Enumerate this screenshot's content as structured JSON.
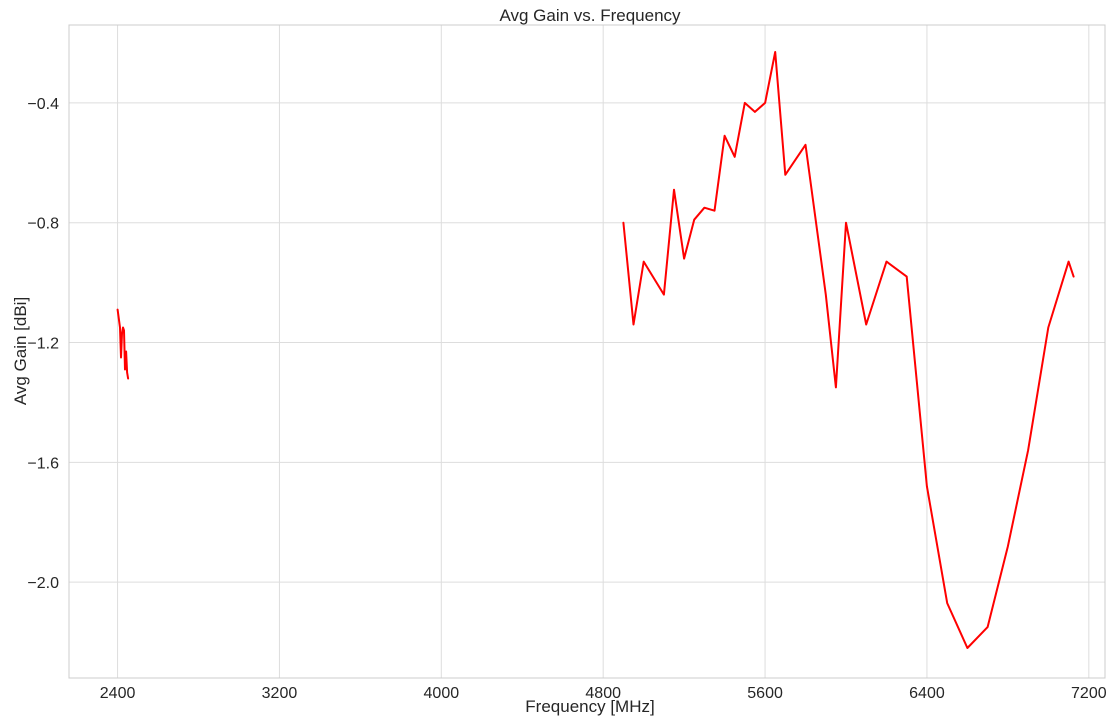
{
  "chart_data": {
    "type": "line",
    "title": "Avg Gain vs. Frequency",
    "xlabel": "Frequency [MHz]",
    "ylabel": "Avg Gain [dBi]",
    "xlim": [
      2160,
      7280
    ],
    "ylim": [
      -2.32,
      -0.14
    ],
    "xticks": [
      2400,
      3200,
      4000,
      4800,
      5600,
      6400,
      7200
    ],
    "xtick_labels": [
      "2400",
      "3200",
      "4000",
      "4800",
      "5600",
      "6400",
      "7200"
    ],
    "yticks": [
      -0.4,
      -0.8,
      -1.2,
      -1.6,
      -2.0
    ],
    "ytick_labels": [
      "−0.4",
      "−0.8",
      "−1.2",
      "−1.6",
      "−2.0"
    ],
    "grid": true,
    "line_color": "#ff0000",
    "series": [
      {
        "points": [
          [
            2400,
            -1.09
          ],
          [
            2412,
            -1.15
          ],
          [
            2417,
            -1.25
          ],
          [
            2422,
            -1.17
          ],
          [
            2427,
            -1.15
          ],
          [
            2432,
            -1.16
          ],
          [
            2437,
            -1.29
          ],
          [
            2442,
            -1.23
          ],
          [
            2447,
            -1.3
          ],
          [
            2452,
            -1.32
          ]
        ]
      },
      {
        "points": [
          [
            4900,
            -0.8
          ],
          [
            4950,
            -1.14
          ],
          [
            5000,
            -0.93
          ],
          [
            5100,
            -1.04
          ],
          [
            5150,
            -0.69
          ],
          [
            5200,
            -0.92
          ],
          [
            5250,
            -0.79
          ],
          [
            5300,
            -0.75
          ],
          [
            5350,
            -0.76
          ],
          [
            5400,
            -0.51
          ],
          [
            5450,
            -0.58
          ],
          [
            5500,
            -0.4
          ],
          [
            5550,
            -0.43
          ],
          [
            5600,
            -0.4
          ],
          [
            5650,
            -0.23
          ],
          [
            5700,
            -0.64
          ],
          [
            5800,
            -0.54
          ],
          [
            5900,
            -1.04
          ],
          [
            5950,
            -1.35
          ],
          [
            6000,
            -0.8
          ],
          [
            6100,
            -1.14
          ],
          [
            6200,
            -0.93
          ],
          [
            6300,
            -0.98
          ],
          [
            6400,
            -1.68
          ],
          [
            6500,
            -2.07
          ],
          [
            6600,
            -2.22
          ],
          [
            6700,
            -2.15
          ],
          [
            6800,
            -1.88
          ],
          [
            6900,
            -1.56
          ],
          [
            7000,
            -1.15
          ],
          [
            7100,
            -0.93
          ],
          [
            7125,
            -0.98
          ]
        ]
      }
    ]
  }
}
